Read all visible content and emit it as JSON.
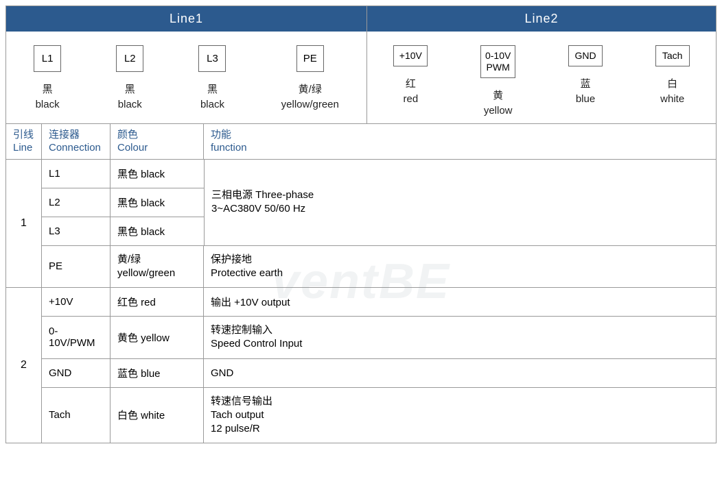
{
  "colors": {
    "header_bg": "#2c5a8e",
    "header_text": "#ffffff",
    "border": "#999999",
    "accent_text": "#2c5a8e",
    "body_text": "#222222",
    "background": "#ffffff"
  },
  "typography": {
    "base_font_size_pt": 12,
    "header_font_size_pt": 14
  },
  "top": {
    "line1_label": "Line1",
    "line2_label": "Line2"
  },
  "terminals": {
    "group1": [
      {
        "box": "L1",
        "cn": "黑",
        "en": "black"
      },
      {
        "box": "L2",
        "cn": "黑",
        "en": "black"
      },
      {
        "box": "L3",
        "cn": "黑",
        "en": "black"
      },
      {
        "box": "PE",
        "cn": "黄/绿",
        "en": "yellow/green"
      }
    ],
    "group2": [
      {
        "box": "+10V",
        "cn": "红",
        "en": "red"
      },
      {
        "box": "0-10V\nPWM",
        "cn": "黄",
        "en": "yellow"
      },
      {
        "box": "GND",
        "cn": "蓝",
        "en": "blue"
      },
      {
        "box": "Tach",
        "cn": "白",
        "en": "white"
      }
    ]
  },
  "table_headers": {
    "line_cn": "引线",
    "line_en": "Line",
    "conn_cn": "连接器",
    "conn_en": "Connection",
    "colour_cn": "颜色",
    "colour_en": "Colour",
    "func_cn": "功能",
    "func_en": "function"
  },
  "rows": {
    "group1": {
      "line": "1",
      "three_phase": {
        "func": "三相电源 Three-phase\n3~AC380V 50/60 Hz",
        "items": [
          {
            "conn": "L1",
            "colour": "黑色 black"
          },
          {
            "conn": "L2",
            "colour": "黑色 black"
          },
          {
            "conn": "L3",
            "colour": "黑色 black"
          }
        ]
      },
      "pe": {
        "conn": "PE",
        "colour": "黄/绿\nyellow/green",
        "func": "保护接地\nProtective earth"
      }
    },
    "group2": {
      "line": "2",
      "items": [
        {
          "conn": "+10V",
          "colour": "红色 red",
          "func": "输出 +10V output"
        },
        {
          "conn": "0-10V/PWM",
          "colour": "黄色 yellow",
          "func": "转速控制输入\nSpeed Control Input"
        },
        {
          "conn": "GND",
          "colour": "蓝色 blue",
          "func": "GND"
        },
        {
          "conn": "Tach",
          "colour": "白色 white",
          "func": "转速信号输出\nTach output\n12 pulse/R"
        }
      ]
    }
  },
  "watermark": "ventBE"
}
